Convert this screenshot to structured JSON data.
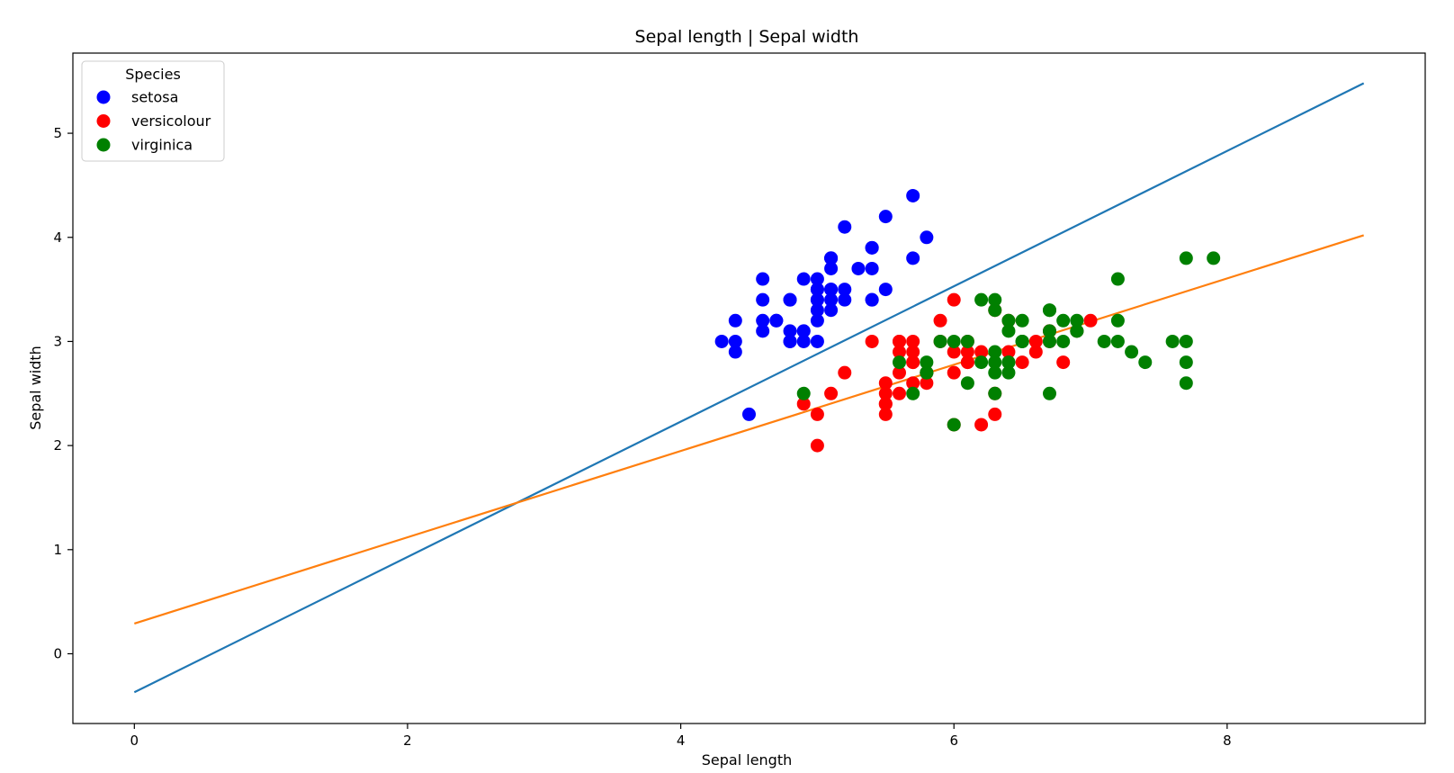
{
  "chart_data": {
    "type": "scatter",
    "title": "Sepal length | Sepal width",
    "xlabel": "Sepal length",
    "ylabel": "Sepal width",
    "xlim": [
      -0.45,
      9.45
    ],
    "ylim": [
      -0.67,
      5.77
    ],
    "xticks": [
      0,
      2,
      4,
      6,
      8
    ],
    "yticks": [
      0,
      1,
      2,
      3,
      4,
      5
    ],
    "grid": false,
    "legend": {
      "title": "Species",
      "placement": "top-left"
    },
    "series": [
      {
        "name": "setosa",
        "color": "#0000ff",
        "points": [
          [
            5.1,
            3.5
          ],
          [
            4.9,
            3.0
          ],
          [
            4.7,
            3.2
          ],
          [
            4.6,
            3.1
          ],
          [
            5.0,
            3.6
          ],
          [
            5.4,
            3.9
          ],
          [
            4.6,
            3.4
          ],
          [
            5.0,
            3.4
          ],
          [
            4.4,
            2.9
          ],
          [
            4.9,
            3.1
          ],
          [
            5.4,
            3.7
          ],
          [
            4.8,
            3.4
          ],
          [
            4.8,
            3.0
          ],
          [
            4.3,
            3.0
          ],
          [
            5.8,
            4.0
          ],
          [
            5.7,
            4.4
          ],
          [
            5.4,
            3.9
          ],
          [
            5.1,
            3.5
          ],
          [
            5.7,
            3.8
          ],
          [
            5.1,
            3.8
          ],
          [
            5.4,
            3.4
          ],
          [
            5.1,
            3.7
          ],
          [
            4.6,
            3.6
          ],
          [
            5.1,
            3.3
          ],
          [
            4.8,
            3.4
          ],
          [
            5.0,
            3.0
          ],
          [
            5.0,
            3.4
          ],
          [
            5.2,
            3.5
          ],
          [
            5.2,
            3.4
          ],
          [
            4.7,
            3.2
          ],
          [
            4.8,
            3.1
          ],
          [
            5.4,
            3.4
          ],
          [
            5.2,
            4.1
          ],
          [
            5.5,
            4.2
          ],
          [
            4.9,
            3.1
          ],
          [
            5.0,
            3.2
          ],
          [
            5.5,
            3.5
          ],
          [
            4.9,
            3.6
          ],
          [
            4.4,
            3.0
          ],
          [
            5.1,
            3.4
          ],
          [
            5.0,
            3.5
          ],
          [
            4.5,
            2.3
          ],
          [
            4.4,
            3.2
          ],
          [
            5.0,
            3.5
          ],
          [
            5.1,
            3.8
          ],
          [
            4.8,
            3.0
          ],
          [
            5.1,
            3.8
          ],
          [
            4.6,
            3.2
          ],
          [
            5.3,
            3.7
          ],
          [
            5.0,
            3.3
          ]
        ]
      },
      {
        "name": "versicolour",
        "color": "#ff0000",
        "points": [
          [
            7.0,
            3.2
          ],
          [
            6.4,
            3.2
          ],
          [
            6.9,
            3.1
          ],
          [
            5.5,
            2.3
          ],
          [
            6.5,
            2.8
          ],
          [
            5.7,
            2.8
          ],
          [
            6.3,
            3.3
          ],
          [
            4.9,
            2.4
          ],
          [
            6.6,
            2.9
          ],
          [
            5.2,
            2.7
          ],
          [
            5.0,
            2.0
          ],
          [
            5.9,
            3.0
          ],
          [
            6.0,
            2.2
          ],
          [
            6.1,
            2.9
          ],
          [
            5.6,
            2.9
          ],
          [
            6.7,
            3.1
          ],
          [
            5.6,
            3.0
          ],
          [
            5.8,
            2.7
          ],
          [
            6.2,
            2.2
          ],
          [
            5.6,
            2.5
          ],
          [
            5.9,
            3.2
          ],
          [
            6.1,
            2.8
          ],
          [
            6.3,
            2.5
          ],
          [
            6.1,
            2.8
          ],
          [
            6.4,
            2.9
          ],
          [
            6.6,
            3.0
          ],
          [
            6.8,
            2.8
          ],
          [
            6.7,
            3.0
          ],
          [
            6.0,
            2.9
          ],
          [
            5.7,
            2.6
          ],
          [
            5.5,
            2.4
          ],
          [
            5.5,
            2.4
          ],
          [
            5.8,
            2.7
          ],
          [
            6.0,
            2.7
          ],
          [
            5.4,
            3.0
          ],
          [
            6.0,
            3.4
          ],
          [
            6.7,
            3.1
          ],
          [
            6.3,
            2.3
          ],
          [
            5.6,
            3.0
          ],
          [
            5.5,
            2.5
          ],
          [
            5.5,
            2.6
          ],
          [
            6.1,
            3.0
          ],
          [
            5.8,
            2.6
          ],
          [
            5.0,
            2.3
          ],
          [
            5.6,
            2.7
          ],
          [
            5.7,
            3.0
          ],
          [
            5.7,
            2.9
          ],
          [
            6.2,
            2.9
          ],
          [
            5.1,
            2.5
          ],
          [
            5.7,
            2.8
          ]
        ]
      },
      {
        "name": "virginica",
        "color": "#008000",
        "points": [
          [
            6.3,
            3.3
          ],
          [
            5.8,
            2.7
          ],
          [
            7.1,
            3.0
          ],
          [
            6.3,
            2.9
          ],
          [
            6.5,
            3.0
          ],
          [
            7.6,
            3.0
          ],
          [
            4.9,
            2.5
          ],
          [
            7.3,
            2.9
          ],
          [
            6.7,
            2.5
          ],
          [
            7.2,
            3.6
          ],
          [
            6.5,
            3.2
          ],
          [
            6.4,
            2.7
          ],
          [
            6.8,
            3.0
          ],
          [
            5.7,
            2.5
          ],
          [
            5.8,
            2.8
          ],
          [
            6.4,
            3.2
          ],
          [
            6.5,
            3.0
          ],
          [
            7.7,
            3.8
          ],
          [
            7.7,
            2.6
          ],
          [
            6.0,
            2.2
          ],
          [
            6.9,
            3.2
          ],
          [
            5.6,
            2.8
          ],
          [
            7.7,
            2.8
          ],
          [
            6.3,
            2.7
          ],
          [
            6.7,
            3.3
          ],
          [
            7.2,
            3.2
          ],
          [
            6.2,
            2.8
          ],
          [
            6.1,
            3.0
          ],
          [
            6.4,
            2.8
          ],
          [
            7.2,
            3.0
          ],
          [
            7.4,
            2.8
          ],
          [
            7.9,
            3.8
          ],
          [
            6.4,
            2.8
          ],
          [
            6.3,
            2.8
          ],
          [
            6.1,
            2.6
          ],
          [
            7.7,
            3.0
          ],
          [
            6.3,
            3.4
          ],
          [
            6.4,
            3.1
          ],
          [
            6.0,
            3.0
          ],
          [
            6.9,
            3.1
          ],
          [
            6.7,
            3.1
          ],
          [
            6.9,
            3.1
          ],
          [
            5.8,
            2.7
          ],
          [
            6.8,
            3.2
          ],
          [
            6.7,
            3.3
          ],
          [
            6.7,
            3.0
          ],
          [
            6.3,
            2.5
          ],
          [
            6.5,
            3.0
          ],
          [
            6.2,
            3.4
          ],
          [
            5.9,
            3.0
          ]
        ]
      }
    ],
    "lines": [
      {
        "color": "#1f77b4",
        "x": [
          0,
          9
        ],
        "y": [
          -0.37,
          5.48
        ]
      },
      {
        "color": "#ff7f0e",
        "x": [
          0,
          9
        ],
        "y": [
          0.29,
          4.02
        ]
      }
    ]
  }
}
